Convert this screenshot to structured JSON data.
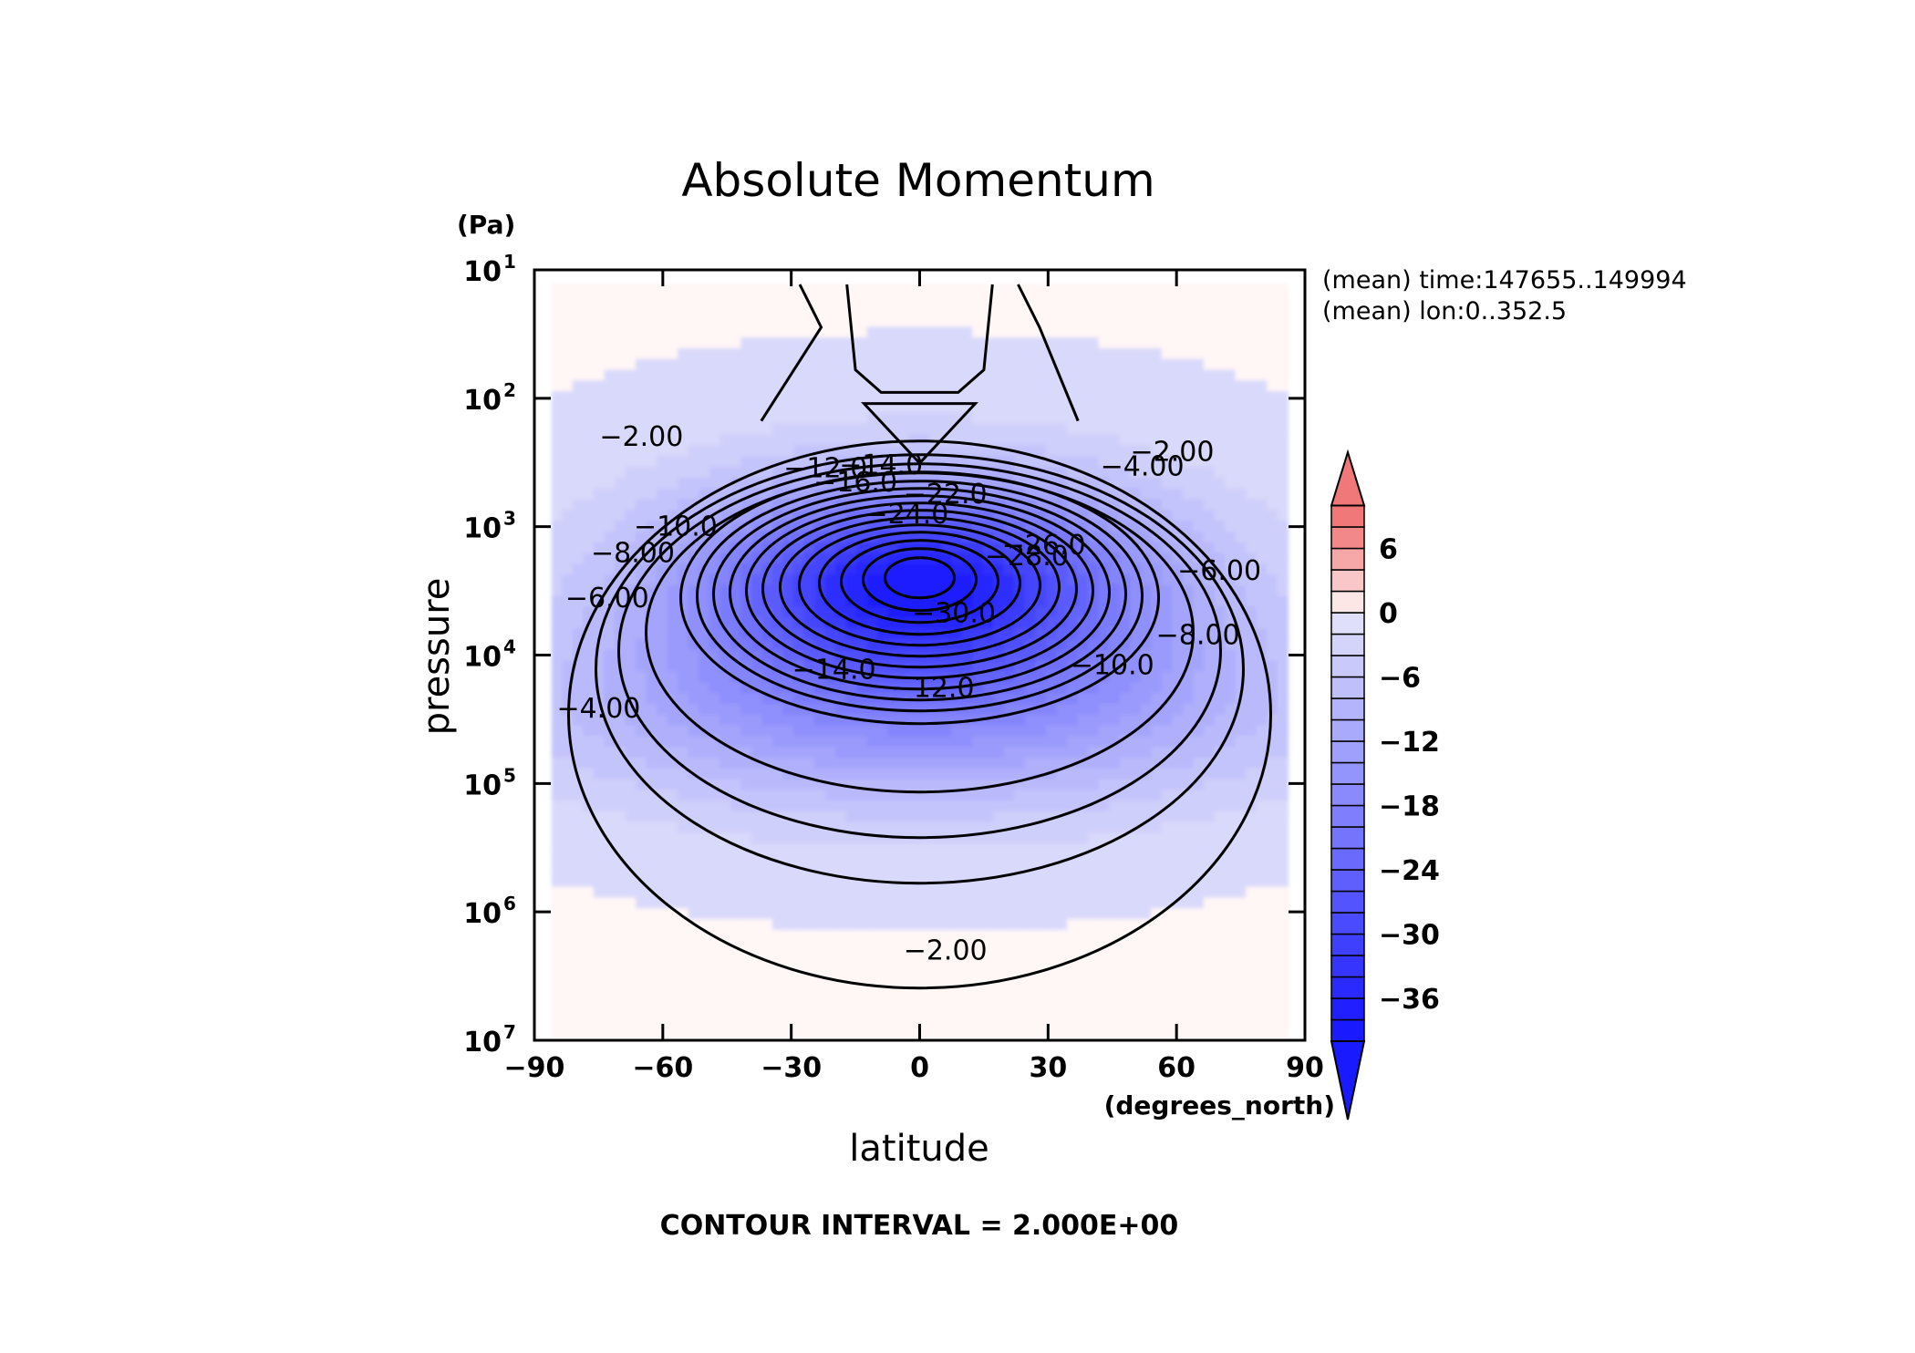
{
  "chart_data": {
    "type": "heatmap",
    "title": "Absolute Momentum",
    "xlabel": "latitude",
    "ylabel": "pressure",
    "x_units": "(degrees_north)",
    "y_units": "(Pa)",
    "xlim": [
      -90,
      90
    ],
    "ylim": [
      10,
      10000000
    ],
    "y_scale": "log",
    "y_inverted": true,
    "grid": false,
    "x_ticks": [
      {
        "value": -90,
        "label": "−90"
      },
      {
        "value": -60,
        "label": "−60"
      },
      {
        "value": -30,
        "label": "−30"
      },
      {
        "value": 0,
        "label": "0"
      },
      {
        "value": 30,
        "label": "30"
      },
      {
        "value": 60,
        "label": "60"
      },
      {
        "value": 90,
        "label": "90"
      }
    ],
    "y_ticks": [
      {
        "value": 10,
        "base": "10",
        "exp": "1"
      },
      {
        "value": 100,
        "base": "10",
        "exp": "2"
      },
      {
        "value": 1000,
        "base": "10",
        "exp": "3"
      },
      {
        "value": 10000,
        "base": "10",
        "exp": "4"
      },
      {
        "value": 100000,
        "base": "10",
        "exp": "5"
      },
      {
        "value": 1000000,
        "base": "10",
        "exp": "6"
      },
      {
        "value": 10000000,
        "base": "10",
        "exp": "7"
      }
    ],
    "annotations": [
      "(mean) time:147655..149994",
      "(mean) lon:0..352.5"
    ],
    "contour_interval_text": "CONTOUR INTERVAL = 2.000E+00",
    "contour_labels": [
      {
        "text": "−2.00",
        "lat": -65,
        "p": 200
      },
      {
        "text": "−4.00",
        "lat": -75,
        "p": 26000
      },
      {
        "text": "−6.00",
        "lat": -73,
        "p": 3600
      },
      {
        "text": "−8.00",
        "lat": -67,
        "p": 1600
      },
      {
        "text": "−10.0",
        "lat": -57,
        "p": 1000
      },
      {
        "text": "−12.0",
        "lat": -22,
        "p": 350
      },
      {
        "text": "−14.0",
        "lat": -9,
        "p": 330
      },
      {
        "text": "−16.0",
        "lat": -15,
        "p": 450
      },
      {
        "text": "−22.0",
        "lat": 6,
        "p": 560
      },
      {
        "text": "−24.0",
        "lat": -3,
        "p": 800
      },
      {
        "text": "−26.0",
        "lat": 29,
        "p": 1400
      },
      {
        "text": "−28.0",
        "lat": 25,
        "p": 1700
      },
      {
        "text": "−30.0",
        "lat": 8,
        "p": 4700
      },
      {
        "text": "−14.0",
        "lat": -20,
        "p": 13000
      },
      {
        "text": "−12.0",
        "lat": 3,
        "p": 18000
      },
      {
        "text": "−10.0",
        "lat": 45,
        "p": 12000
      },
      {
        "text": "−8.00",
        "lat": 65,
        "p": 7000
      },
      {
        "text": "−6.00",
        "lat": 70,
        "p": 2200
      },
      {
        "text": "−4.00",
        "lat": 52,
        "p": 340
      },
      {
        "text": "−2.00",
        "lat": 59,
        "p": 260
      },
      {
        "text": "−2.00",
        "lat": 6,
        "p": 2000000
      }
    ],
    "colorbar": {
      "labels": [
        {
          "value": 6,
          "label": "6"
        },
        {
          "value": 0,
          "label": "0"
        },
        {
          "value": -6,
          "label": "−6"
        },
        {
          "value": -12,
          "label": "−12"
        },
        {
          "value": -18,
          "label": "−18"
        },
        {
          "value": -24,
          "label": "−24"
        },
        {
          "value": -30,
          "label": "−30"
        },
        {
          "value": -36,
          "label": "−36"
        }
      ],
      "range": [
        -40,
        10
      ],
      "step": 2,
      "extend": "both"
    },
    "colors": {
      "negative_max": "#1a1aff",
      "positive_max": "#f07878",
      "near_zero": "#e4e4fb"
    }
  }
}
